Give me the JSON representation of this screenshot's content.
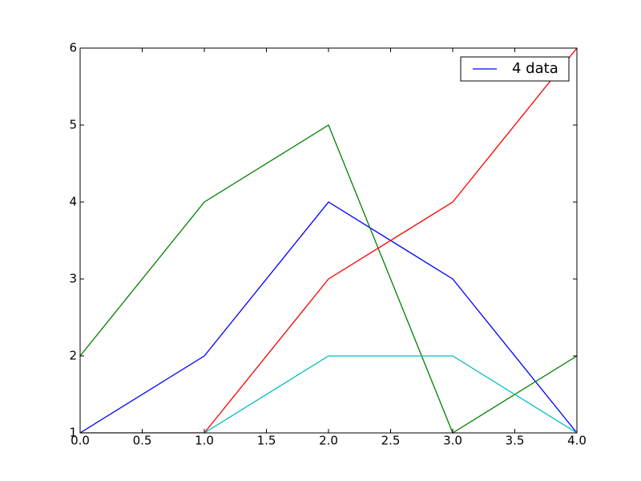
{
  "chart_data": {
    "type": "line",
    "x": [
      0,
      1,
      2,
      3,
      4
    ],
    "series": [
      {
        "name": "4 data",
        "color": "#0000ff",
        "values": [
          1,
          2,
          4,
          3,
          1
        ]
      },
      {
        "color": "#008000",
        "values": [
          2,
          4,
          5,
          1,
          2
        ]
      },
      {
        "color": "#ff0000",
        "values": [
          1,
          1,
          3,
          4,
          6
        ]
      },
      {
        "color": "#00bfbf",
        "values": [
          1,
          1,
          2,
          2,
          1
        ]
      }
    ],
    "xlim": [
      0,
      4
    ],
    "xticks": [
      {
        "value": 0,
        "label": "0.0"
      },
      {
        "value": 0.5,
        "label": "0.5"
      },
      {
        "value": 1,
        "label": "1.0"
      },
      {
        "value": 1.5,
        "label": "1.5"
      },
      {
        "value": 2,
        "label": "2.0"
      },
      {
        "value": 2.5,
        "label": "2.5"
      },
      {
        "value": 3,
        "label": "3.0"
      },
      {
        "value": 3.5,
        "label": "3.5"
      },
      {
        "value": 4,
        "label": "4.0"
      }
    ],
    "ylim": [
      1,
      6
    ],
    "yticks": [
      1,
      2,
      3,
      4,
      5,
      6
    ],
    "grid": false,
    "legend": "upper right"
  }
}
